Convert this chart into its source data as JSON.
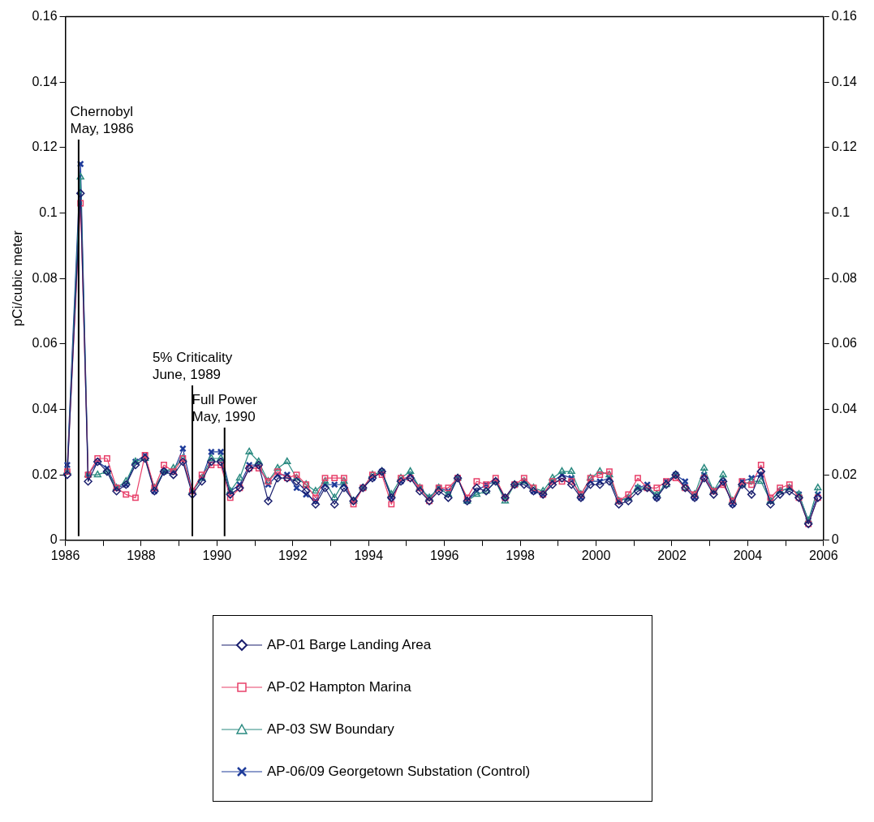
{
  "chart_data": {
    "type": "line",
    "ylabel": "pCi/cubic meter",
    "legend": "bottom",
    "grid": false,
    "x": [
      1986.05,
      1986.4,
      1986.6,
      1986.85,
      1987.1,
      1987.35,
      1987.6,
      1987.85,
      1988.1,
      1988.35,
      1988.6,
      1988.85,
      1989.1,
      1989.35,
      1989.6,
      1989.85,
      1990.1,
      1990.35,
      1990.6,
      1990.85,
      1991.1,
      1991.35,
      1991.6,
      1991.85,
      1992.1,
      1992.35,
      1992.6,
      1992.85,
      1993.1,
      1993.35,
      1993.6,
      1993.85,
      1994.1,
      1994.35,
      1994.6,
      1994.85,
      1995.1,
      1995.35,
      1995.6,
      1995.85,
      1996.1,
      1996.35,
      1996.6,
      1996.85,
      1997.1,
      1997.35,
      1997.6,
      1997.85,
      1998.1,
      1998.35,
      1998.6,
      1998.85,
      1999.1,
      1999.35,
      1999.6,
      1999.85,
      2000.1,
      2000.35,
      2000.6,
      2000.85,
      2001.1,
      2001.35,
      2001.6,
      2001.85,
      2002.1,
      2002.35,
      2002.6,
      2002.85,
      2003.1,
      2003.35,
      2003.6,
      2003.85,
      2004.1,
      2004.35,
      2004.6,
      2004.85,
      2005.1,
      2005.35,
      2005.6,
      2005.85
    ],
    "xlim": [
      1986,
      2006
    ],
    "xticks": [
      1986,
      {
        "value": 1987,
        "label": null
      },
      1988,
      {
        "value": 1989,
        "label": null
      },
      1990,
      {
        "value": 1991,
        "label": null
      },
      1992,
      {
        "value": 1993,
        "label": null
      },
      1994,
      {
        "value": 1995,
        "label": null
      },
      1996,
      {
        "value": 1997,
        "label": null
      },
      1998,
      {
        "value": 1999,
        "label": null
      },
      2000,
      {
        "value": 2001,
        "label": null
      },
      2002,
      {
        "value": 2003,
        "label": null
      },
      2004,
      {
        "value": 2005,
        "label": null
      },
      2006
    ],
    "ylim": [
      0,
      0.16
    ],
    "yticks": [
      0,
      0.02,
      0.04,
      0.06,
      0.08,
      0.1,
      0.12,
      0.14,
      0.16
    ],
    "y2lim": [
      0,
      0.16
    ],
    "y2ticks": [
      0,
      0.02,
      0.04,
      0.06,
      0.08,
      0.1,
      0.12,
      0.14,
      0.16
    ],
    "series": [
      {
        "name": "AP-01 Barge Landing Area",
        "color": "#1a1f6e",
        "marker": "diamond",
        "values": [
          0.02,
          0.106,
          0.018,
          0.024,
          0.021,
          0.015,
          0.017,
          0.023,
          0.025,
          0.015,
          0.021,
          0.02,
          0.024,
          0.014,
          0.018,
          0.024,
          0.024,
          0.014,
          0.016,
          0.022,
          0.023,
          0.012,
          0.019,
          0.019,
          0.018,
          0.015,
          0.011,
          0.016,
          0.011,
          0.016,
          0.012,
          0.016,
          0.019,
          0.021,
          0.013,
          0.018,
          0.019,
          0.015,
          0.012,
          0.015,
          0.013,
          0.019,
          0.012,
          0.016,
          0.015,
          0.018,
          0.013,
          0.017,
          0.017,
          0.015,
          0.014,
          0.017,
          0.019,
          0.017,
          0.013,
          0.017,
          0.017,
          0.018,
          0.011,
          0.012,
          0.015,
          0.016,
          0.013,
          0.017,
          0.02,
          0.016,
          0.013,
          0.019,
          0.014,
          0.018,
          0.011,
          0.017,
          0.014,
          0.021,
          0.011,
          0.014,
          0.015,
          0.013,
          0.005,
          0.013
        ]
      },
      {
        "name": "AP-02 Hampton Marina",
        "color": "#e8406a",
        "marker": "square",
        "values": [
          0.021,
          0.103,
          0.02,
          0.025,
          0.025,
          0.016,
          0.014,
          0.013,
          0.026,
          0.016,
          0.023,
          0.021,
          0.025,
          0.015,
          0.02,
          0.023,
          0.023,
          0.013,
          0.016,
          0.022,
          0.022,
          0.018,
          0.021,
          0.019,
          0.02,
          0.017,
          0.013,
          0.019,
          0.019,
          0.019,
          0.011,
          0.016,
          0.02,
          0.02,
          0.011,
          0.019,
          0.019,
          0.016,
          0.012,
          0.016,
          0.016,
          0.019,
          0.013,
          0.018,
          0.017,
          0.019,
          0.013,
          0.017,
          0.019,
          0.016,
          0.014,
          0.018,
          0.018,
          0.018,
          0.014,
          0.019,
          0.02,
          0.021,
          0.012,
          0.014,
          0.019,
          0.016,
          0.016,
          0.018,
          0.019,
          0.016,
          0.014,
          0.019,
          0.015,
          0.017,
          0.012,
          0.018,
          0.017,
          0.023,
          0.013,
          0.016,
          0.017,
          0.013,
          0.005,
          0.013
        ]
      },
      {
        "name": "AP-03 SW Boundary",
        "color": "#2a8a80",
        "marker": "triangle",
        "values": [
          0.021,
          0.111,
          0.02,
          0.02,
          0.021,
          0.016,
          0.018,
          0.024,
          0.025,
          0.016,
          0.021,
          0.022,
          0.025,
          0.015,
          0.019,
          0.025,
          0.025,
          0.015,
          0.019,
          0.027,
          0.024,
          0.018,
          0.022,
          0.024,
          0.019,
          0.017,
          0.015,
          0.018,
          0.013,
          0.018,
          0.012,
          0.016,
          0.02,
          0.021,
          0.014,
          0.019,
          0.021,
          0.016,
          0.013,
          0.016,
          0.014,
          0.019,
          0.012,
          0.014,
          0.015,
          0.018,
          0.012,
          0.017,
          0.018,
          0.016,
          0.015,
          0.019,
          0.021,
          0.021,
          0.014,
          0.019,
          0.021,
          0.02,
          0.012,
          0.013,
          0.016,
          0.016,
          0.014,
          0.017,
          0.02,
          0.016,
          0.014,
          0.022,
          0.015,
          0.02,
          0.012,
          0.017,
          0.018,
          0.018,
          0.012,
          0.015,
          0.016,
          0.014,
          0.006,
          0.016
        ]
      },
      {
        "name": "AP-06/09 Georgetown Substation (Control)",
        "color": "#1f3c9a",
        "marker": "cross",
        "values": [
          0.023,
          0.115,
          0.02,
          0.024,
          0.022,
          0.016,
          0.017,
          0.024,
          0.026,
          0.015,
          0.021,
          0.021,
          0.028,
          0.015,
          0.019,
          0.027,
          0.027,
          0.015,
          0.017,
          0.023,
          0.023,
          0.017,
          0.02,
          0.02,
          0.016,
          0.014,
          0.012,
          0.017,
          0.017,
          0.017,
          0.012,
          0.016,
          0.019,
          0.021,
          0.013,
          0.018,
          0.02,
          0.016,
          0.013,
          0.016,
          0.015,
          0.019,
          0.012,
          0.015,
          0.017,
          0.018,
          0.013,
          0.017,
          0.018,
          0.015,
          0.014,
          0.018,
          0.02,
          0.019,
          0.013,
          0.018,
          0.018,
          0.019,
          0.012,
          0.013,
          0.016,
          0.017,
          0.013,
          0.018,
          0.02,
          0.018,
          0.013,
          0.02,
          0.015,
          0.018,
          0.011,
          0.018,
          0.019,
          0.02,
          0.012,
          0.015,
          0.016,
          0.014,
          0.006,
          0.014
        ]
      }
    ],
    "ref_lines": [
      {
        "axis": "x",
        "value": 1986.35,
        "label": "Chernobyl\nMay, 1986",
        "color": "#000000"
      },
      {
        "axis": "x",
        "value": 1989.35,
        "label": "5% Criticality\nJune, 1989",
        "color": "#000000"
      },
      {
        "axis": "x",
        "value": 1990.2,
        "label": "Full Power\nMay, 1990",
        "color": "#000000"
      }
    ]
  }
}
